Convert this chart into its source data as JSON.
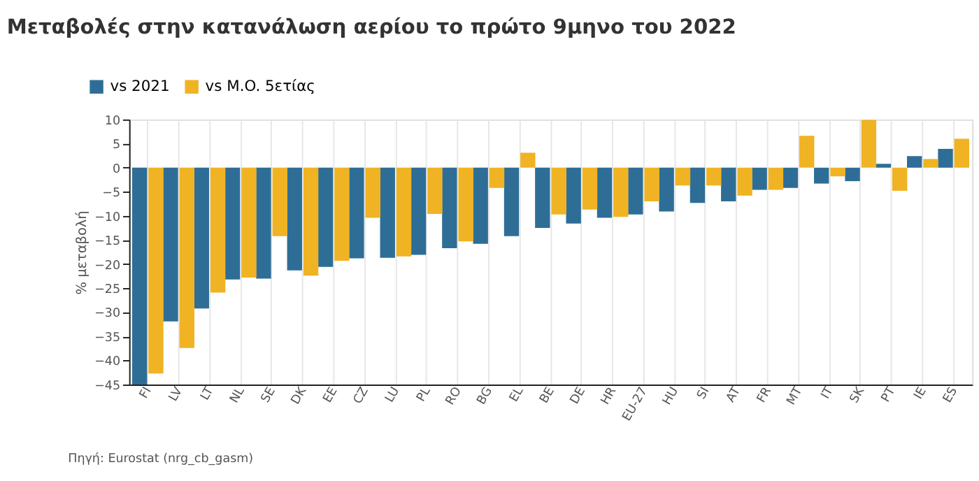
{
  "chart_data": {
    "type": "bar",
    "title": "Μεταβολές στην κατανάλωση αερίου το πρώτο 9μηνο του 2022",
    "categories": [
      "FI",
      "LV",
      "LT",
      "NL",
      "SE",
      "DK",
      "EE",
      "CZ",
      "LU",
      "PL",
      "RO",
      "BG",
      "EL",
      "BE",
      "DE",
      "HR",
      "EU-27",
      "HU",
      "SI",
      "AT",
      "FR",
      "MT",
      "IT",
      "SK",
      "PT",
      "IE",
      "ES"
    ],
    "series": [
      {
        "name": "vs 2021",
        "color": "#2e6e96",
        "values": [
          -45,
          -31.9,
          -29.2,
          -23.2,
          -23.0,
          -21.3,
          -20.6,
          -18.8,
          -18.7,
          -18.1,
          -16.7,
          -15.8,
          -14.2,
          -12.5,
          -11.6,
          -10.4,
          -9.7,
          -9.1,
          -7.3,
          -7.0,
          -4.6,
          -4.2,
          -3.3,
          -2.8,
          0.8,
          2.4,
          3.9
        ]
      },
      {
        "name": "vs M.O. 5ετίας",
        "color": "#f0b323",
        "values": [
          -42.7,
          -37.4,
          -25.9,
          -22.8,
          -14.2,
          -22.4,
          -19.3,
          -10.4,
          -18.4,
          -9.6,
          -15.3,
          -4.2,
          3.1,
          -9.7,
          -8.7,
          -10.2,
          -7.0,
          -3.7,
          -3.7,
          -5.8,
          -4.6,
          6.6,
          -1.8,
          9.9,
          -4.8,
          1.8,
          6.0
        ]
      }
    ],
    "ylabel": "% μεταβολή",
    "ylim": [
      -45,
      10
    ],
    "yticks": [
      -45,
      -40,
      -35,
      -30,
      -25,
      -20,
      -15,
      -10,
      -5,
      0,
      5,
      10
    ],
    "grid": "x",
    "legend": "top left",
    "annotations": [
      "Πηγή: Eurostat (nrg_cb_gasm)"
    ]
  }
}
